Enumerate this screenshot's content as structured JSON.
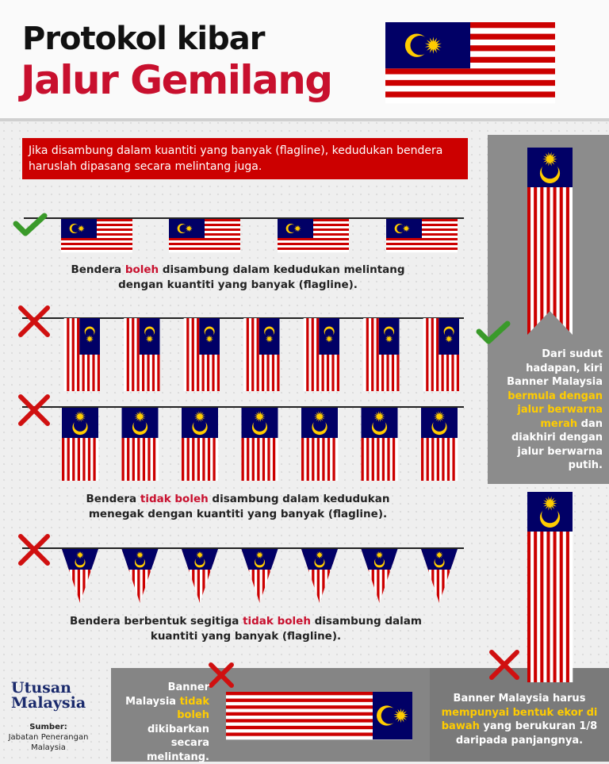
{
  "header": {
    "title": "Protokol kibar",
    "subtitle": "Jalur Gemilang"
  },
  "intro": "Jika disambung dalam kuantiti yang banyak (flagline), kedudukan bendera haruslah dipasang secara melintang juga.",
  "rules": [
    {
      "parts": [
        "Bendera ",
        "boleh",
        " disambung dalam kedudukan melintang dengan kuantiti yang banyak (flagline)."
      ]
    },
    {
      "parts": [
        "Bendera ",
        "tidak boleh",
        " disambung dalam kedudukan menegak dengan kuantiti yang banyak (flagline)."
      ]
    },
    {
      "parts": [
        "Bendera berbentuk segitiga ",
        "tidak boleh",
        " disambung dalam  kuantiti yang banyak (flagline)."
      ]
    }
  ],
  "side_notes": [
    {
      "parts": [
        "Dari sudut hadapan, kiri Banner Malaysia ",
        "bermula dengan jalur berwarna merah",
        " dan diakhiri dengan jalur berwarna putih."
      ]
    },
    {
      "parts": [
        "Banner Malaysia ",
        "tidak boleh",
        " dikibarkan secara melintang."
      ]
    },
    {
      "parts": [
        "Banner Malaysia harus ",
        "mempunyai bentuk ekor di bawah",
        " yang berukuran 1/8 daripada panjangnya."
      ]
    }
  ],
  "brand": {
    "name": [
      "Utusan",
      "Malaysia"
    ]
  },
  "source": {
    "label": "Sumber:",
    "text": "Jabatan Penerangan Malaysia"
  }
}
